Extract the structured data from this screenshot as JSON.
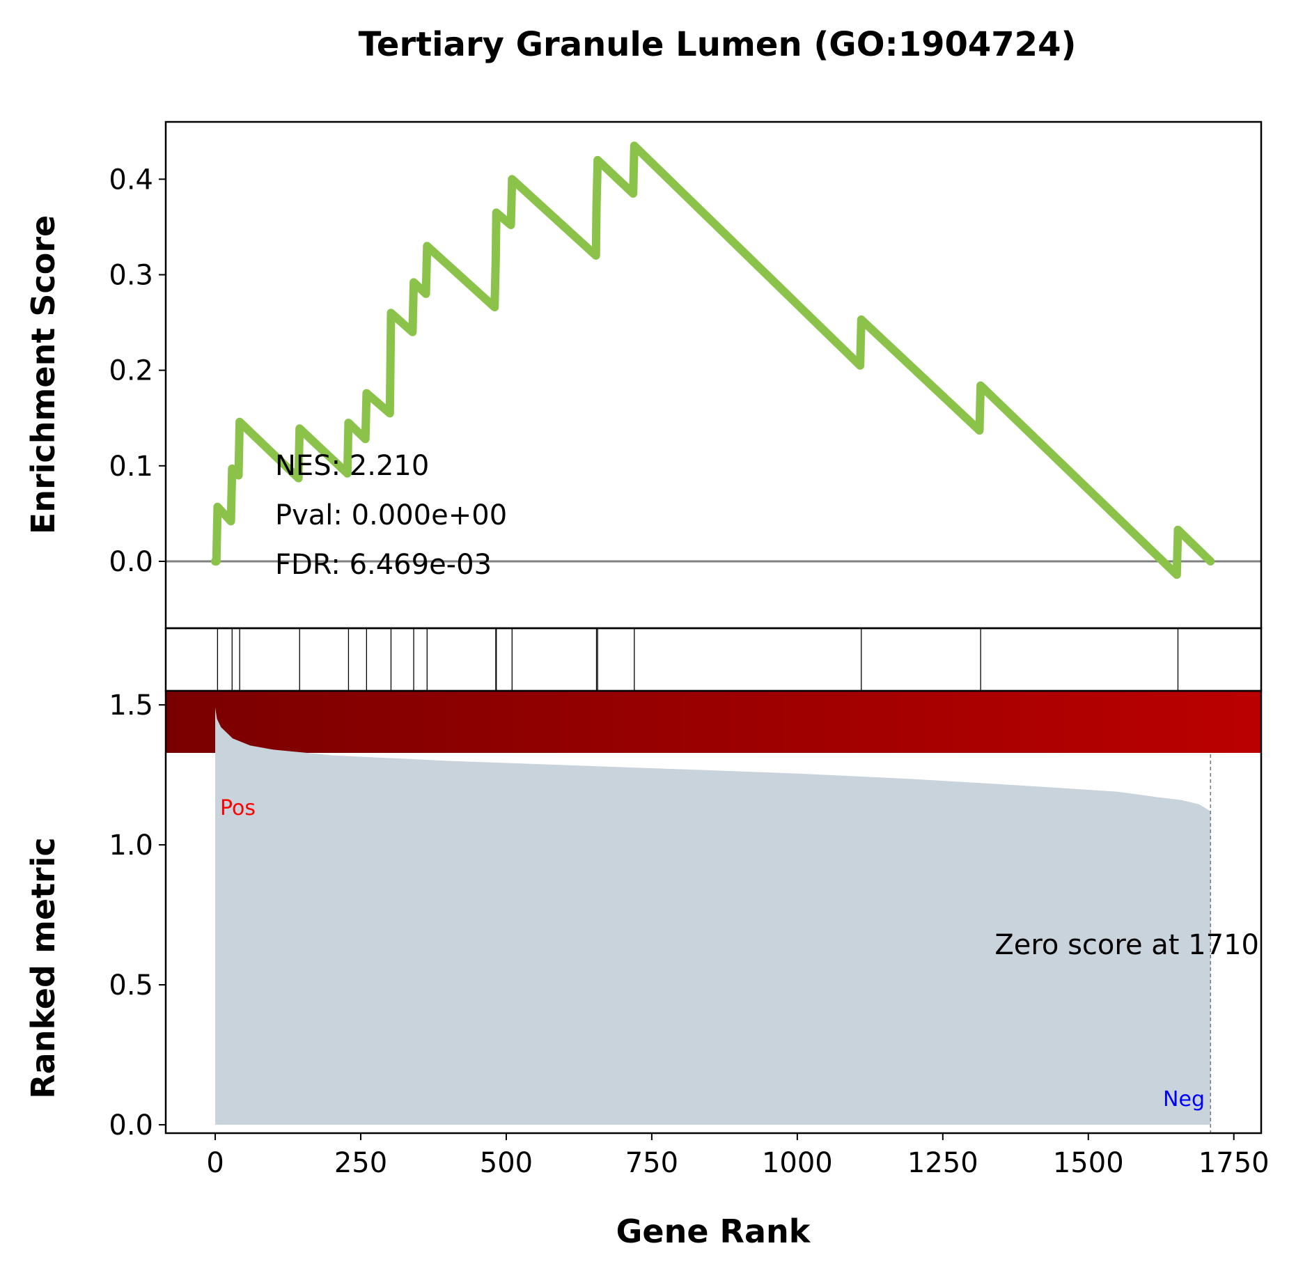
{
  "chart_data": [
    {
      "type": "line",
      "title": "Tertiary Granule Lumen (GO:1904724)",
      "ylabel": "Enrichment Score",
      "ylim": [
        -0.07,
        0.46
      ],
      "yticks": [
        0.0,
        0.1,
        0.2,
        0.3,
        0.4
      ],
      "ytick_labels": [
        "0.0",
        "0.1",
        "0.2",
        "0.3",
        "0.4"
      ],
      "line_color": "#8bc34a",
      "zero_line_color": "#808080",
      "stats": {
        "nes": "NES: 2.210",
        "pval": "Pval: 0.000e+00",
        "fdr": "FDR: 6.469e-03"
      },
      "points": [
        [
          0,
          0.0
        ],
        [
          2,
          0.0
        ],
        [
          4,
          0.057
        ],
        [
          27,
          0.042
        ],
        [
          29,
          0.097
        ],
        [
          40,
          0.09
        ],
        [
          42,
          0.146
        ],
        [
          143,
          0.087
        ],
        [
          145,
          0.139
        ],
        [
          227,
          0.092
        ],
        [
          229,
          0.145
        ],
        [
          258,
          0.128
        ],
        [
          260,
          0.176
        ],
        [
          300,
          0.155
        ],
        [
          302,
          0.26
        ],
        [
          339,
          0.24
        ],
        [
          341,
          0.292
        ],
        [
          362,
          0.28
        ],
        [
          364,
          0.33
        ],
        [
          480,
          0.266
        ],
        [
          482,
          0.317
        ],
        [
          483,
          0.365
        ],
        [
          508,
          0.352
        ],
        [
          510,
          0.4
        ],
        [
          654,
          0.32
        ],
        [
          655,
          0.37
        ],
        [
          657,
          0.42
        ],
        [
          718,
          0.385
        ],
        [
          720,
          0.435
        ],
        [
          1108,
          0.205
        ],
        [
          1110,
          0.253
        ],
        [
          1313,
          0.137
        ],
        [
          1315,
          0.184
        ],
        [
          1652,
          -0.014
        ],
        [
          1654,
          0.033
        ],
        [
          1710,
          0.0
        ]
      ]
    },
    {
      "type": "hits",
      "hit_positions": [
        4,
        29,
        42,
        145,
        229,
        260,
        302,
        341,
        364,
        482,
        483,
        510,
        655,
        657,
        720,
        1110,
        1315,
        1654
      ]
    },
    {
      "type": "area",
      "ylabel": "Ranked metric",
      "xlabel": "Gene Rank",
      "xlim": [
        -85,
        1797
      ],
      "ylim": [
        -0.03,
        1.55
      ],
      "xticks": [
        0,
        250,
        500,
        750,
        1000,
        1250,
        1500,
        1750
      ],
      "xtick_labels": [
        "0",
        "250",
        "500",
        "750",
        "1000",
        "1250",
        "1500",
        "1750"
      ],
      "yticks": [
        0.0,
        0.5,
        1.0,
        1.5
      ],
      "ytick_labels": [
        "0.0",
        "0.5",
        "1.0",
        "1.5"
      ],
      "fill_color": "#c8d3dc",
      "heatbar_colors": [
        "#7a0000",
        "#bb0000"
      ],
      "pos_label": "Pos",
      "neg_label": "Neg",
      "pos_color": "#ff0000",
      "neg_color": "#0000ff",
      "zero_score_text": "Zero score at 1710",
      "zero_score_rank": 1710,
      "points": [
        [
          0,
          1.49
        ],
        [
          3,
          1.45
        ],
        [
          10,
          1.42
        ],
        [
          20,
          1.4
        ],
        [
          30,
          1.38
        ],
        [
          60,
          1.355
        ],
        [
          100,
          1.34
        ],
        [
          200,
          1.32
        ],
        [
          400,
          1.3
        ],
        [
          600,
          1.285
        ],
        [
          800,
          1.27
        ],
        [
          1000,
          1.255
        ],
        [
          1200,
          1.235
        ],
        [
          1400,
          1.21
        ],
        [
          1550,
          1.19
        ],
        [
          1620,
          1.17
        ],
        [
          1660,
          1.16
        ],
        [
          1690,
          1.145
        ],
        [
          1710,
          1.12
        ]
      ]
    }
  ]
}
